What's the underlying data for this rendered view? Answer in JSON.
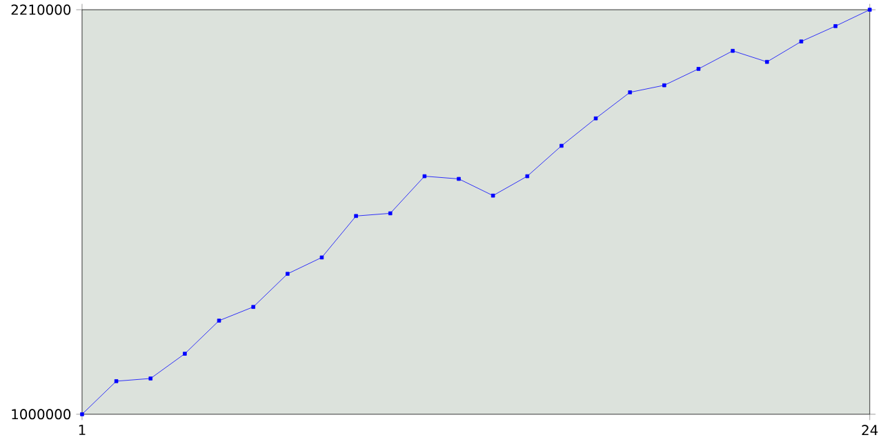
{
  "chart_data": {
    "type": "line",
    "x": [
      1,
      2,
      3,
      4,
      5,
      6,
      7,
      8,
      9,
      10,
      11,
      12,
      13,
      14,
      15,
      16,
      17,
      18,
      19,
      20,
      21,
      22,
      23,
      24
    ],
    "series": [
      {
        "color": "#0000ff",
        "values": [
          1000000,
          1099000,
          1107000,
          1181000,
          1280000,
          1321000,
          1420000,
          1469000,
          1593000,
          1601000,
          1712000,
          1704000,
          1654000,
          1712000,
          1803000,
          1885000,
          1963000,
          1984000,
          2033000,
          2087000,
          2054000,
          2115000,
          2161000,
          2210000
        ]
      }
    ],
    "xlim": [
      1,
      24
    ],
    "xticks": [
      1,
      24
    ],
    "ylim": [
      1000000,
      2210000
    ],
    "yticks": [
      1000000,
      2210000
    ],
    "marker": "square",
    "line_style": "solid",
    "grid": false
  }
}
